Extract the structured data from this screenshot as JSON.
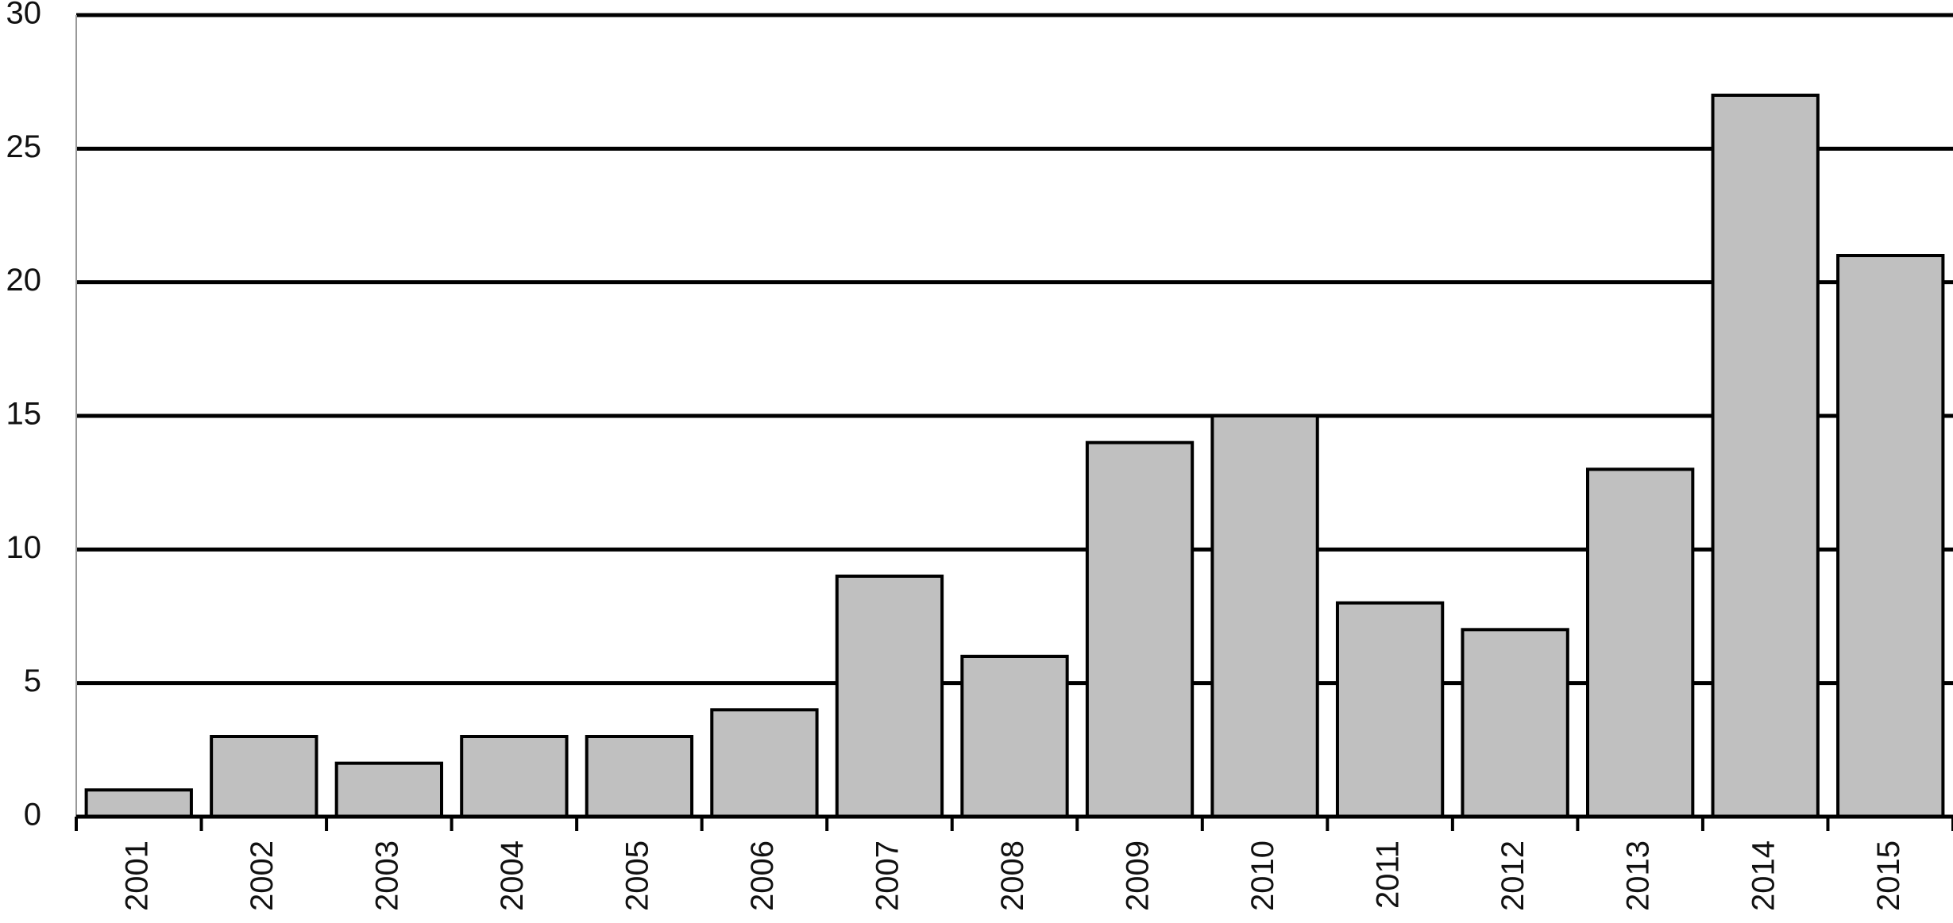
{
  "chart_data": {
    "type": "bar",
    "categories": [
      "2001",
      "2002",
      "2003",
      "2004",
      "2005",
      "2006",
      "2007",
      "2008",
      "2009",
      "2010",
      "2011",
      "2012",
      "2013",
      "2014",
      "2015"
    ],
    "values": [
      1,
      3,
      2,
      3,
      3,
      4,
      9,
      6,
      14,
      15,
      8,
      7,
      13,
      27,
      21
    ],
    "color": "#c0c0c0",
    "ylim": [
      0,
      30
    ],
    "yticks": [
      0,
      5,
      10,
      15,
      20,
      25,
      30
    ],
    "grid": true
  }
}
